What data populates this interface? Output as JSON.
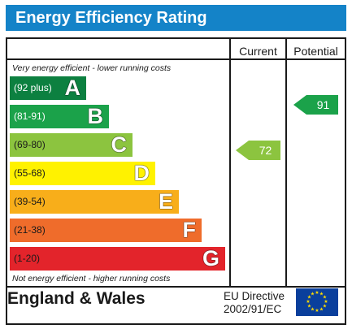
{
  "header": {
    "title": "Energy Efficiency Rating",
    "bg_color": "#1483c8"
  },
  "columns": {
    "current_label": "Current",
    "potential_label": "Potential"
  },
  "notes": {
    "top": "Very energy efficient - lower running costs",
    "bottom": "Not energy efficient - higher running costs"
  },
  "bands": [
    {
      "range": "(92 plus)",
      "letter": "A",
      "color": "#0c8040",
      "range_color": "#ffffff"
    },
    {
      "range": "(81-91)",
      "letter": "B",
      "color": "#1ba24a",
      "range_color": "#ffffff"
    },
    {
      "range": "(69-80)",
      "letter": "C",
      "color": "#8cc43f",
      "range_color": "#1a1a1a"
    },
    {
      "range": "(55-68)",
      "letter": "D",
      "color": "#fff200",
      "range_color": "#1a1a1a"
    },
    {
      "range": "(39-54)",
      "letter": "E",
      "color": "#f8ae1a",
      "range_color": "#1a1a1a"
    },
    {
      "range": "(21-38)",
      "letter": "F",
      "color": "#ef6c2b",
      "range_color": "#1a1a1a"
    },
    {
      "range": "(1-20)",
      "letter": "G",
      "color": "#e3242b",
      "range_color": "#1a1a1a"
    }
  ],
  "ratings": {
    "current": {
      "value": "72",
      "band": "C",
      "color": "#8cc43f"
    },
    "potential": {
      "value": "91",
      "band": "B",
      "color": "#1ba24a"
    }
  },
  "footer": {
    "region": "England & Wales",
    "directive_line1": "EU Directive",
    "directive_line2": "2002/91/EC",
    "flag_icon": "eu-flag-icon"
  }
}
